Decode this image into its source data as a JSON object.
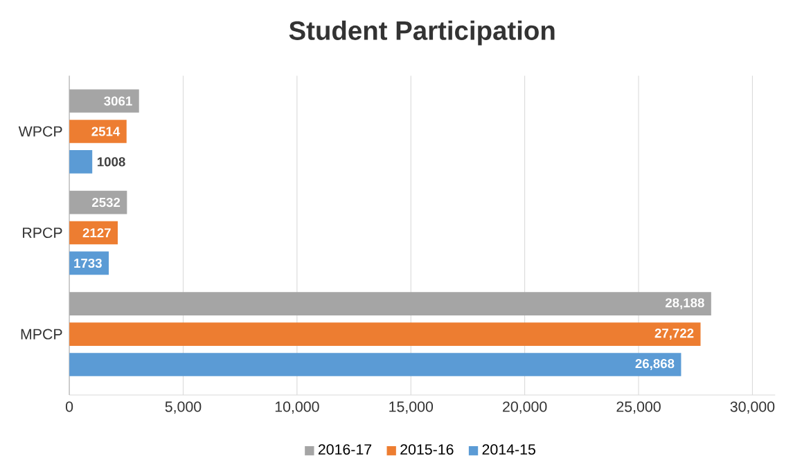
{
  "chart_data": {
    "type": "bar",
    "orientation": "horizontal",
    "title": "Student Participation",
    "categories": [
      "WPCP",
      "RPCP",
      "MPCP"
    ],
    "series": [
      {
        "name": "2016-17",
        "color": "#a5a5a5",
        "values": [
          3061,
          2532,
          28188
        ],
        "value_labels": [
          "3061",
          "2532",
          "28,188"
        ]
      },
      {
        "name": "2015-16",
        "color": "#ed7d31",
        "values": [
          2514,
          2127,
          27722
        ],
        "value_labels": [
          "2514",
          "2127",
          "27,722"
        ]
      },
      {
        "name": "2014-15",
        "color": "#5b9bd5",
        "values": [
          1008,
          1733,
          26868
        ],
        "value_labels": [
          "1008",
          "1733",
          "26,868"
        ]
      }
    ],
    "xlim": [
      0,
      31000
    ],
    "xticks": [
      0,
      {
        "value": 5000,
        "label": "5,000"
      },
      {
        "value": 10000,
        "label": "10,000"
      },
      {
        "value": 15000,
        "label": "15,000"
      },
      {
        "value": 20000,
        "label": "20,000"
      },
      {
        "value": 25000,
        "label": "25,000"
      },
      {
        "value": 30000,
        "label": "30,000"
      }
    ],
    "grid": "x",
    "legend": "bottom"
  }
}
